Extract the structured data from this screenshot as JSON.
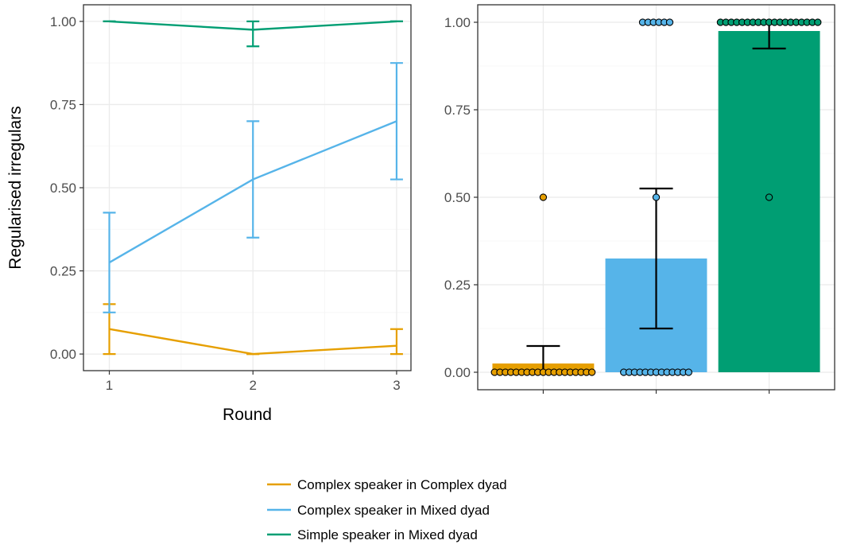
{
  "colors": {
    "complex_complex": "#E69F00",
    "complex_mixed": "#56B4E9",
    "simple_mixed": "#009E73"
  },
  "legend": {
    "position": "bottom",
    "items": [
      {
        "label": "Complex speaker in Complex dyad",
        "color": "#E69F00"
      },
      {
        "label": "Complex speaker in Mixed dyad",
        "color": "#56B4E9"
      },
      {
        "label": "Simple speaker in Mixed dyad",
        "color": "#009E73"
      }
    ]
  },
  "chart_data": [
    {
      "type": "line",
      "title": "",
      "xlabel": "Round",
      "ylabel": "Regularised irregulars",
      "x": [
        1,
        2,
        3
      ],
      "xticks": [
        "1",
        "2",
        "3"
      ],
      "xlim": [
        0.82,
        3.1
      ],
      "ylim": [
        -0.05,
        1.05
      ],
      "yticks": [
        "0.00",
        "0.25",
        "0.50",
        "0.75",
        "1.00"
      ],
      "grid": true,
      "series": [
        {
          "name": "Complex speaker in Complex dyad",
          "color": "#E69F00",
          "values": [
            0.075,
            0.0,
            0.025
          ],
          "err_low": [
            0.0,
            0.0,
            0.0
          ],
          "err_high": [
            0.15,
            0.0,
            0.075
          ]
        },
        {
          "name": "Complex speaker in Mixed dyad",
          "color": "#56B4E9",
          "values": [
            0.275,
            0.525,
            0.7
          ],
          "err_low": [
            0.125,
            0.35,
            0.525
          ],
          "err_high": [
            0.425,
            0.7,
            0.875
          ]
        },
        {
          "name": "Simple speaker in Mixed dyad",
          "color": "#009E73",
          "values": [
            1.0,
            0.975,
            1.0
          ],
          "err_low": [
            1.0,
            0.925,
            1.0
          ],
          "err_high": [
            1.0,
            1.0,
            1.0
          ]
        }
      ]
    },
    {
      "type": "bar",
      "title": "",
      "xlabel": "",
      "ylabel": "",
      "ylim": [
        -0.05,
        1.05
      ],
      "yticks": [
        "0.00",
        "0.25",
        "0.50",
        "0.75",
        "1.00"
      ],
      "grid": true,
      "bars": [
        {
          "name": "Complex speaker in Complex dyad",
          "color": "#E69F00",
          "value": 0.025,
          "err_low": 0.0,
          "err_high": 0.075,
          "points": [
            0,
            0,
            0,
            0,
            0,
            0,
            0,
            0,
            0,
            0,
            0,
            0,
            0,
            0,
            0,
            0,
            0,
            0,
            0,
            0.5
          ]
        },
        {
          "name": "Complex speaker in Mixed dyad",
          "color": "#56B4E9",
          "value": 0.325,
          "err_low": 0.125,
          "err_high": 0.525,
          "points": [
            0,
            0,
            0,
            0,
            0,
            0,
            0,
            0,
            0,
            0,
            0,
            0,
            0,
            0.5,
            1,
            1,
            1,
            1,
            1,
            1
          ]
        },
        {
          "name": "Simple speaker in Mixed dyad",
          "color": "#009E73",
          "value": 0.975,
          "err_low": 0.925,
          "err_high": 1.0,
          "points": [
            0.5,
            1,
            1,
            1,
            1,
            1,
            1,
            1,
            1,
            1,
            1,
            1,
            1,
            1,
            1,
            1,
            1,
            1,
            1,
            1
          ]
        }
      ]
    }
  ]
}
